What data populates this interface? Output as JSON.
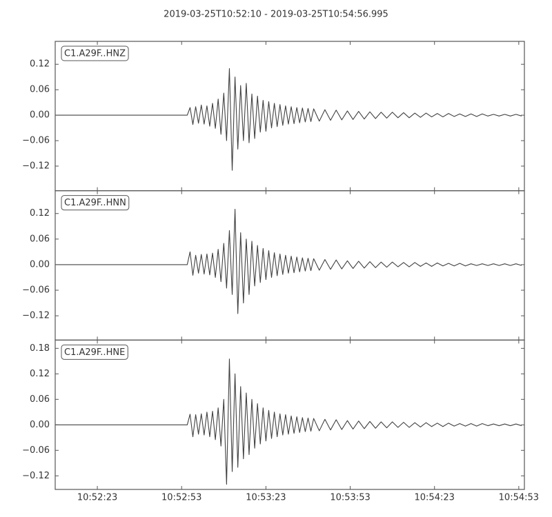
{
  "chart_data": {
    "type": "line",
    "title": "2019-03-25T10:52:10  -  2019-03-25T10:54:56.995",
    "xlim": [
      "10:52:08",
      "10:54:55"
    ],
    "xticks": [
      "10:52:23",
      "10:52:53",
      "10:53:23",
      "10:53:53",
      "10:54:23",
      "10:54:53"
    ],
    "x": [
      "10:52:08",
      "10:52:55",
      "10:52:56",
      "10:52:57",
      "10:52:58",
      "10:52:59",
      "10:53:00",
      "10:53:01",
      "10:53:02",
      "10:53:03",
      "10:53:04",
      "10:53:05",
      "10:53:06",
      "10:53:07",
      "10:53:08",
      "10:53:09",
      "10:53:10",
      "10:53:11",
      "10:53:12",
      "10:53:13",
      "10:53:14",
      "10:53:15",
      "10:53:16",
      "10:53:17",
      "10:53:18",
      "10:53:19",
      "10:53:20",
      "10:53:21",
      "10:53:22",
      "10:53:23",
      "10:53:24",
      "10:53:25",
      "10:53:26",
      "10:53:27",
      "10:53:28",
      "10:53:29",
      "10:53:30",
      "10:53:31",
      "10:53:32",
      "10:53:33",
      "10:53:34",
      "10:53:35",
      "10:53:36",
      "10:53:37",
      "10:53:38",
      "10:53:39",
      "10:53:40",
      "10:53:42",
      "10:53:44",
      "10:53:46",
      "10:53:48",
      "10:53:50",
      "10:53:52",
      "10:53:54",
      "10:53:56",
      "10:53:58",
      "10:54:00",
      "10:54:02",
      "10:54:04",
      "10:54:06",
      "10:54:08",
      "10:54:10",
      "10:54:12",
      "10:54:14",
      "10:54:16",
      "10:54:18",
      "10:54:20",
      "10:54:22",
      "10:54:24",
      "10:54:26",
      "10:54:28",
      "10:54:30",
      "10:54:32",
      "10:54:34",
      "10:54:36",
      "10:54:38",
      "10:54:40",
      "10:54:42",
      "10:54:44",
      "10:54:46",
      "10:54:48",
      "10:54:50",
      "10:54:52",
      "10:54:54"
    ],
    "series": [
      {
        "name": "C1.A29F..HNZ",
        "color": "#404040",
        "ylim": [
          -0.178,
          0.174
        ],
        "yticks": [
          {
            "value": -0.12,
            "label": "−0.12"
          },
          {
            "value": -0.06,
            "label": "−0.06"
          },
          {
            "value": 0,
            "label": "0.00"
          },
          {
            "value": 0.06,
            "label": "0.06"
          },
          {
            "value": 0.12,
            "label": "0.12"
          }
        ],
        "values": [
          0,
          0,
          0.018,
          -0.022,
          0.02,
          -0.019,
          0.024,
          -0.021,
          0.022,
          -0.026,
          0.028,
          -0.031,
          0.038,
          -0.045,
          0.052,
          -0.06,
          0.11,
          -0.13,
          0.09,
          -0.08,
          0.07,
          -0.06,
          0.075,
          -0.065,
          0.05,
          -0.055,
          0.045,
          -0.04,
          0.035,
          -0.038,
          0.032,
          -0.03,
          0.028,
          -0.027,
          0.025,
          -0.024,
          0.022,
          -0.021,
          0.02,
          -0.02,
          0.018,
          -0.018,
          0.017,
          -0.016,
          0.016,
          -0.015,
          0.015,
          -0.014,
          0.013,
          -0.012,
          0.012,
          -0.011,
          0.01,
          -0.01,
          0.009,
          -0.009,
          0.008,
          -0.008,
          0.007,
          -0.007,
          0.007,
          -0.006,
          0.006,
          -0.006,
          0.005,
          -0.005,
          0.005,
          -0.004,
          0.004,
          -0.004,
          0.004,
          -0.003,
          0.003,
          -0.003,
          0.003,
          -0.003,
          0.003,
          -0.002,
          0.002,
          -0.002,
          0.002,
          -0.002,
          0.002,
          -0.002
        ]
      },
      {
        "name": "C1.A29F..HNN",
        "color": "#404040",
        "ylim": [
          -0.177,
          0.1735
        ],
        "yticks": [
          {
            "value": -0.12,
            "label": "−0.12"
          },
          {
            "value": -0.06,
            "label": "−0.06"
          },
          {
            "value": 0,
            "label": "0.00"
          },
          {
            "value": 0.06,
            "label": "0.06"
          },
          {
            "value": 0.12,
            "label": "0.12"
          }
        ],
        "values": [
          0,
          0,
          0.03,
          -0.025,
          0.022,
          -0.02,
          0.024,
          -0.022,
          0.025,
          -0.024,
          0.027,
          -0.03,
          0.036,
          -0.04,
          0.05,
          -0.055,
          0.08,
          -0.07,
          0.13,
          -0.115,
          0.075,
          -0.09,
          0.06,
          -0.07,
          0.055,
          -0.05,
          0.045,
          -0.042,
          0.038,
          -0.035,
          0.033,
          -0.03,
          0.028,
          -0.026,
          0.025,
          -0.023,
          0.022,
          -0.02,
          0.02,
          -0.019,
          0.018,
          -0.017,
          0.016,
          -0.015,
          0.015,
          -0.014,
          0.014,
          -0.013,
          0.012,
          -0.011,
          0.011,
          -0.01,
          0.009,
          -0.009,
          0.008,
          -0.008,
          0.007,
          -0.007,
          0.006,
          -0.006,
          0.006,
          -0.005,
          0.005,
          -0.005,
          0.005,
          -0.004,
          0.004,
          -0.004,
          0.004,
          -0.003,
          0.003,
          -0.003,
          0.003,
          -0.003,
          0.002,
          -0.002,
          0.002,
          -0.002,
          0.002,
          -0.002,
          0.002,
          -0.002,
          0.002,
          -0.002
        ]
      },
      {
        "name": "C1.A29F..HNE",
        "color": "#404040",
        "ylim": [
          -0.152,
          0.1995
        ],
        "yticks": [
          {
            "value": -0.12,
            "label": "−0.12"
          },
          {
            "value": -0.06,
            "label": "−0.06"
          },
          {
            "value": 0,
            "label": "0.00"
          },
          {
            "value": 0.06,
            "label": "0.06"
          },
          {
            "value": 0.12,
            "label": "0.12"
          },
          {
            "value": 0.18,
            "label": "0.18"
          }
        ],
        "values": [
          0,
          0,
          0.025,
          -0.028,
          0.024,
          -0.022,
          0.026,
          -0.024,
          0.03,
          -0.028,
          0.032,
          -0.035,
          0.04,
          -0.05,
          0.06,
          -0.14,
          0.155,
          -0.11,
          0.12,
          -0.1,
          0.09,
          -0.08,
          0.075,
          -0.07,
          0.06,
          -0.055,
          0.05,
          -0.045,
          0.04,
          -0.038,
          0.034,
          -0.032,
          0.03,
          -0.028,
          0.026,
          -0.024,
          0.024,
          -0.022,
          0.021,
          -0.02,
          0.019,
          -0.018,
          0.017,
          -0.016,
          0.016,
          -0.015,
          0.015,
          -0.014,
          0.013,
          -0.012,
          0.012,
          -0.011,
          0.01,
          -0.01,
          0.009,
          -0.009,
          0.008,
          -0.008,
          0.007,
          -0.007,
          0.007,
          -0.006,
          0.006,
          -0.006,
          0.005,
          -0.005,
          0.005,
          -0.004,
          0.004,
          -0.004,
          0.004,
          -0.003,
          0.003,
          -0.003,
          0.003,
          -0.003,
          0.003,
          -0.002,
          0.002,
          -0.002,
          0.002,
          -0.002,
          0.002,
          -0.002
        ]
      }
    ]
  }
}
